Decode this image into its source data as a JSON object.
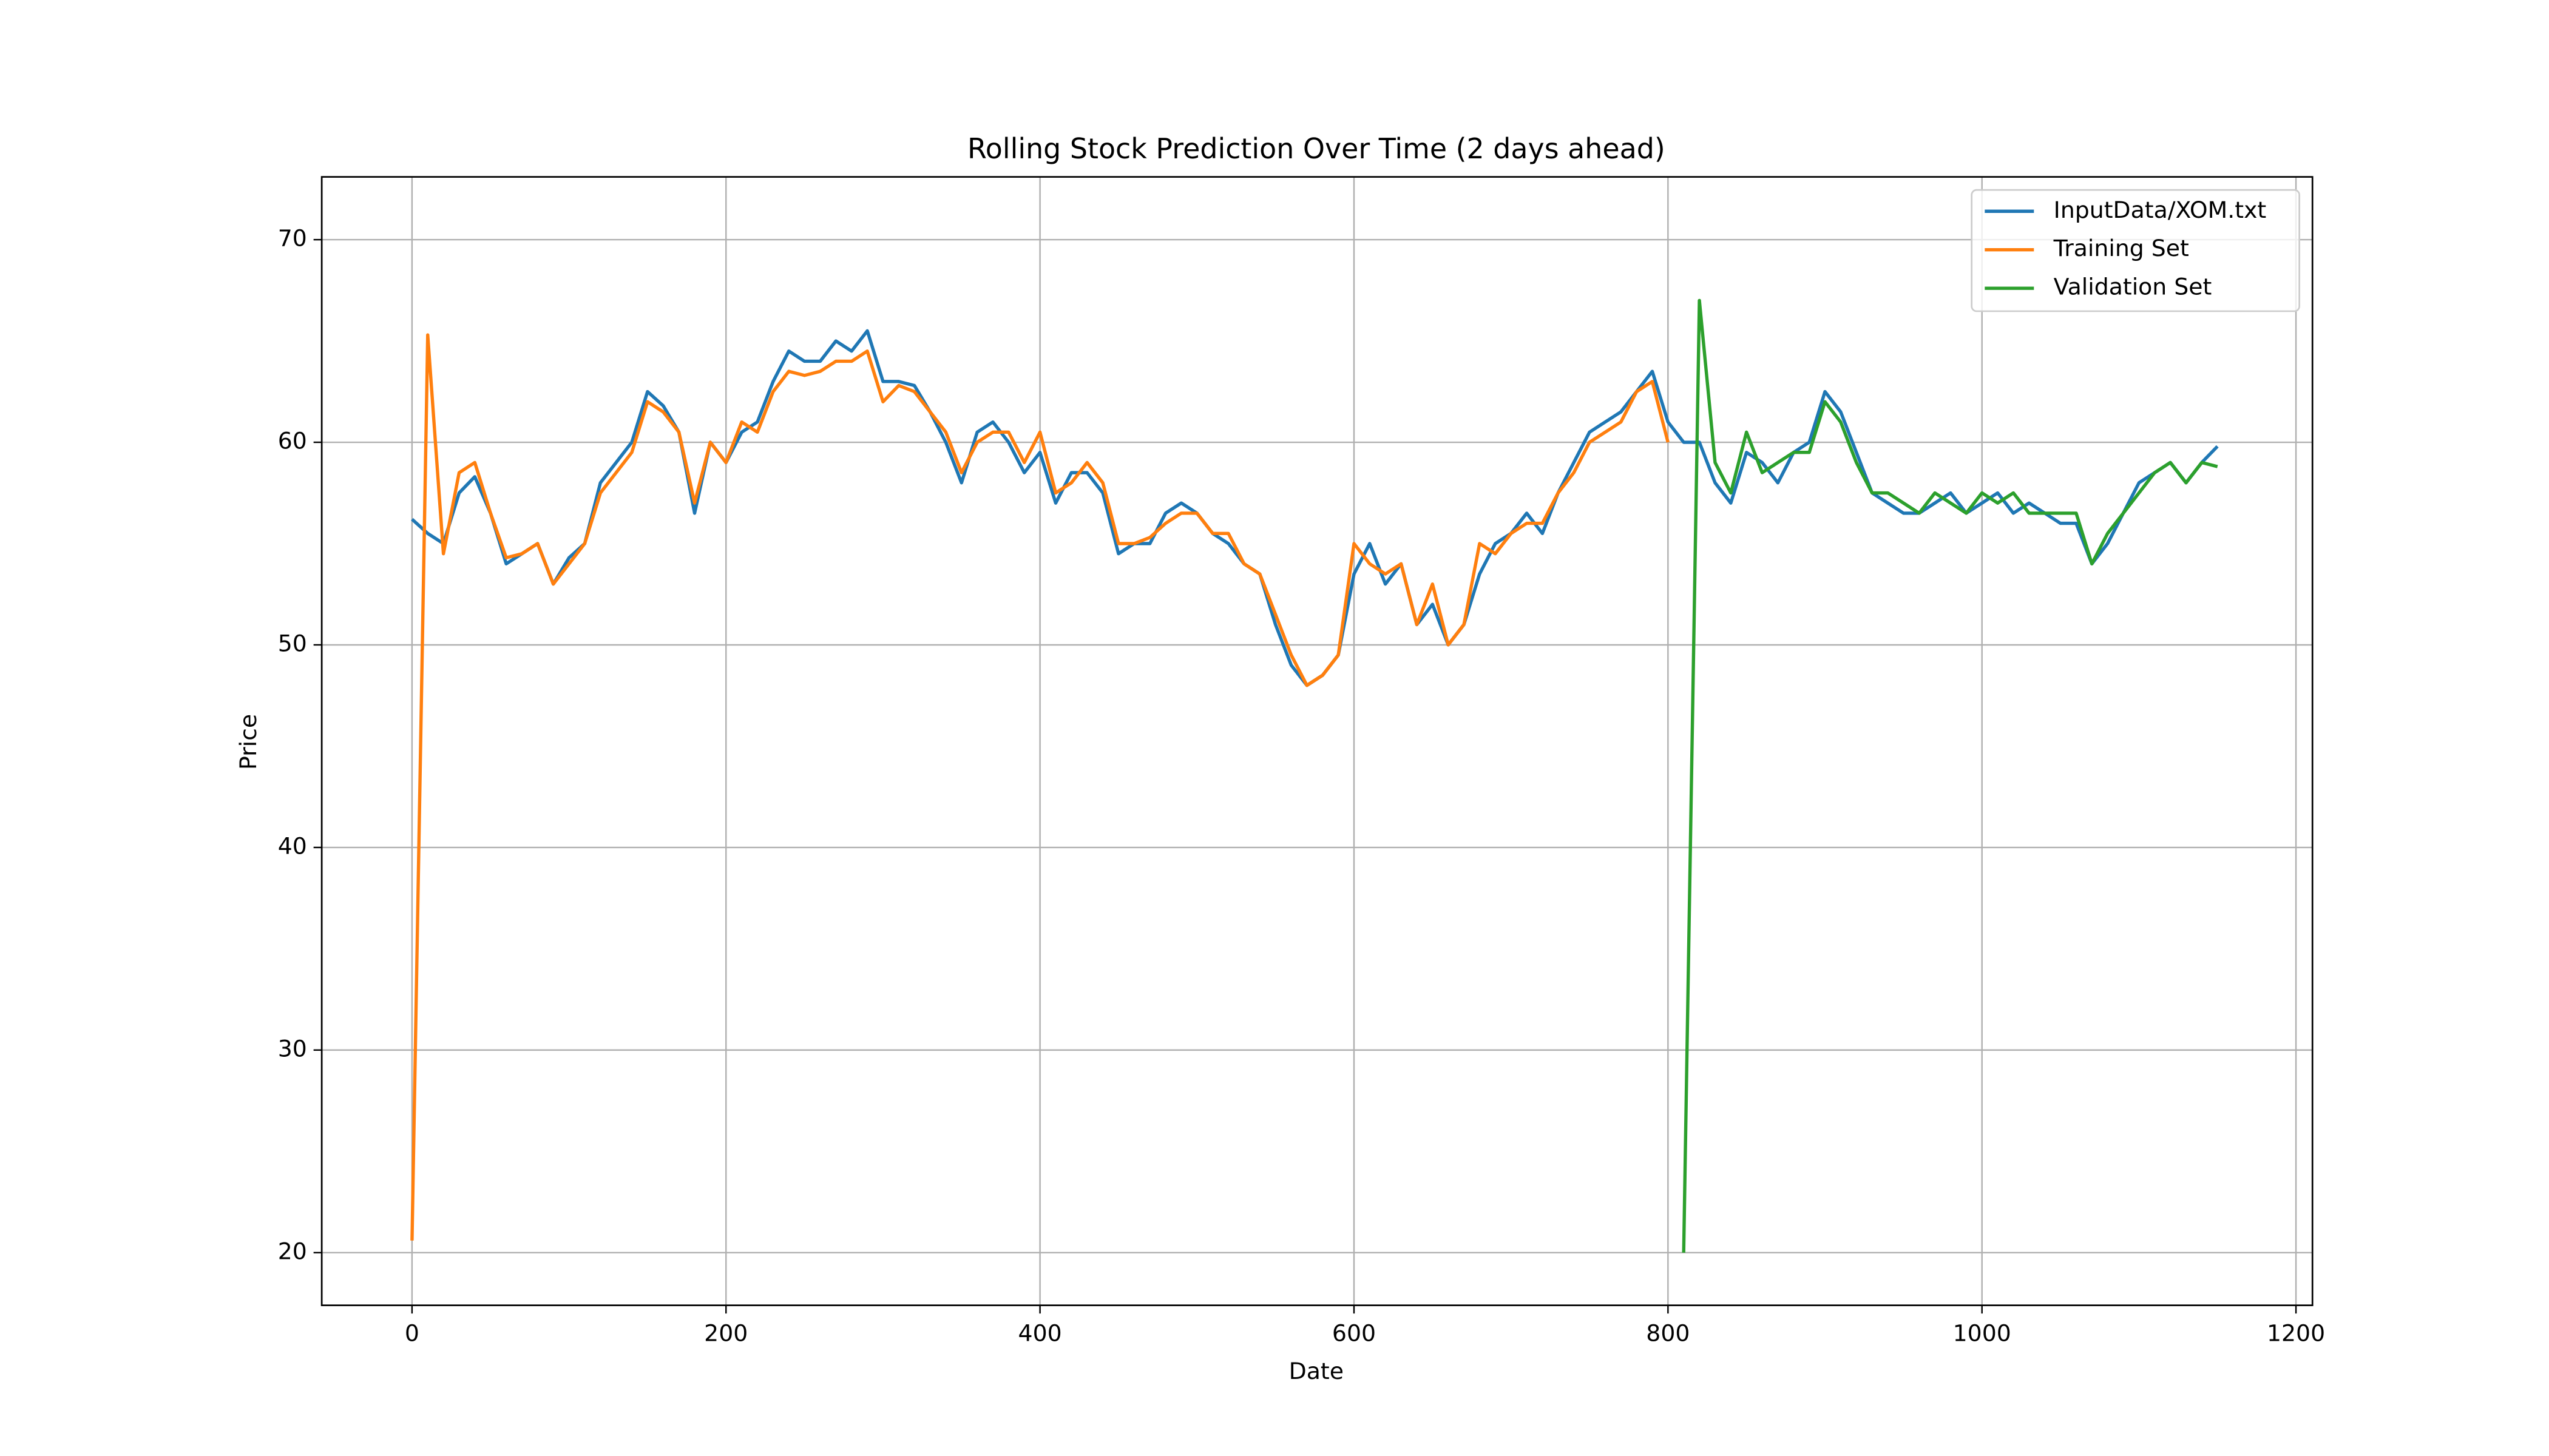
{
  "chart_data": {
    "type": "line",
    "title": "Rolling Stock Prediction Over Time (2 days ahead)",
    "x_label": "Date",
    "y_label": "Price",
    "x": [
      0,
      10,
      20,
      30,
      40,
      50,
      60,
      70,
      80,
      90,
      100,
      110,
      120,
      130,
      140,
      150,
      160,
      170,
      180,
      190,
      200,
      210,
      220,
      230,
      240,
      250,
      260,
      270,
      280,
      290,
      300,
      310,
      320,
      330,
      340,
      350,
      360,
      370,
      380,
      390,
      400,
      410,
      420,
      430,
      440,
      450,
      460,
      470,
      480,
      490,
      500,
      510,
      520,
      530,
      540,
      550,
      560,
      570,
      580,
      590,
      600,
      610,
      620,
      630,
      640,
      650,
      660,
      670,
      680,
      690,
      700,
      710,
      720,
      730,
      740,
      750,
      760,
      770,
      780,
      790,
      800,
      810,
      820,
      830,
      840,
      850,
      860,
      870,
      880,
      890,
      900,
      910,
      920,
      930,
      940,
      950,
      960,
      970,
      980,
      990,
      1000,
      1010,
      1020,
      1030,
      1040,
      1050,
      1060,
      1070,
      1080,
      1090,
      1100,
      1110,
      1120,
      1130,
      1140,
      1150
    ],
    "series": [
      {
        "name": "InputData/XOM.txt",
        "color": "#1f77b4",
        "values": [
          56.2,
          55.5,
          55.0,
          57.5,
          58.3,
          56.5,
          54.0,
          54.5,
          55.0,
          53.0,
          54.3,
          55.0,
          58.0,
          59.0,
          60.0,
          62.5,
          61.8,
          60.5,
          56.5,
          60.0,
          59.0,
          60.5,
          61.0,
          63.0,
          64.5,
          64.0,
          64.0,
          65.0,
          64.5,
          65.5,
          63.0,
          63.0,
          62.8,
          61.5,
          60.0,
          58.0,
          60.5,
          61.0,
          60.0,
          58.5,
          59.5,
          57.0,
          58.5,
          58.5,
          57.5,
          54.5,
          55.0,
          55.0,
          56.5,
          57.0,
          56.5,
          55.5,
          55.0,
          54.0,
          53.5,
          51.0,
          49.0,
          48.0,
          48.5,
          49.5,
          53.5,
          55.0,
          53.0,
          54.0,
          51.0,
          52.0,
          50.0,
          51.0,
          53.5,
          55.0,
          55.5,
          56.5,
          55.5,
          57.5,
          59.0,
          60.5,
          61.0,
          61.5,
          62.5,
          63.5,
          61.0,
          60.0,
          60.0,
          58.0,
          57.0,
          59.5,
          59.0,
          58.0,
          59.5,
          60.0,
          62.5,
          61.5,
          59.5,
          57.5,
          57.0,
          56.5,
          56.5,
          57.0,
          57.5,
          56.5,
          57.0,
          57.5,
          56.5,
          57.0,
          56.5,
          56.0,
          56.0,
          54.0,
          55.0,
          56.5,
          58.0,
          58.5,
          59.0,
          58.0,
          59.0,
          59.8
        ]
      },
      {
        "name": "Training Set",
        "color": "#ff7f0e",
        "values": [
          20.6,
          65.3,
          54.5,
          58.5,
          59.0,
          56.5,
          54.3,
          54.5,
          55.0,
          53.0,
          54.0,
          55.0,
          57.5,
          58.5,
          59.5,
          62.0,
          61.5,
          60.5,
          57.0,
          60.0,
          59.0,
          61.0,
          60.5,
          62.5,
          63.5,
          63.3,
          63.5,
          64.0,
          64.0,
          64.5,
          62.0,
          62.8,
          62.5,
          61.5,
          60.5,
          58.5,
          60.0,
          60.5,
          60.5,
          59.0,
          60.5,
          57.5,
          58.0,
          59.0,
          58.0,
          55.0,
          55.0,
          55.3,
          56.0,
          56.5,
          56.5,
          55.5,
          55.5,
          54.0,
          53.5,
          51.5,
          49.5,
          48.0,
          48.5,
          49.5,
          55.0,
          54.0,
          53.5,
          54.0,
          51.0,
          53.0,
          50.0,
          51.0,
          55.0,
          54.5,
          55.5,
          56.0,
          56.0,
          57.5,
          58.5,
          60.0,
          60.5,
          61.0,
          62.5,
          63.0,
          60.0,
          null,
          null,
          null,
          null,
          null,
          null,
          null,
          null,
          null,
          null,
          null,
          null,
          null,
          null,
          null,
          null,
          null,
          null,
          null,
          null,
          null,
          null,
          null,
          null,
          null,
          null,
          null,
          null,
          null,
          null,
          null,
          null,
          null,
          null,
          null
        ]
      },
      {
        "name": "Validation Set",
        "color": "#2ca02c",
        "values": [
          null,
          null,
          null,
          null,
          null,
          null,
          null,
          null,
          null,
          null,
          null,
          null,
          null,
          null,
          null,
          null,
          null,
          null,
          null,
          null,
          null,
          null,
          null,
          null,
          null,
          null,
          null,
          null,
          null,
          null,
          null,
          null,
          null,
          null,
          null,
          null,
          null,
          null,
          null,
          null,
          null,
          null,
          null,
          null,
          null,
          null,
          null,
          null,
          null,
          null,
          null,
          null,
          null,
          null,
          null,
          null,
          null,
          null,
          null,
          null,
          null,
          null,
          null,
          null,
          null,
          null,
          null,
          null,
          null,
          null,
          null,
          null,
          null,
          null,
          null,
          null,
          null,
          null,
          null,
          null,
          null,
          20.0,
          67.0,
          59.0,
          57.5,
          60.5,
          58.5,
          59.0,
          59.5,
          59.5,
          62.0,
          61.0,
          59.0,
          57.5,
          57.5,
          57.0,
          56.5,
          57.5,
          57.0,
          56.5,
          57.5,
          57.0,
          57.5,
          56.5,
          56.5,
          56.5,
          56.5,
          54.0,
          55.5,
          56.5,
          57.5,
          58.5,
          59.0,
          58.0,
          59.0,
          58.8
        ]
      }
    ],
    "xlim": [
      -57.5,
      1210.5
    ],
    "ylim": [
      17.4,
      73.1
    ],
    "xticks": [
      0,
      200,
      400,
      600,
      800,
      1000,
      1200
    ],
    "yticks": [
      20,
      30,
      40,
      50,
      60,
      70
    ],
    "grid": true,
    "legend": "upper right"
  }
}
